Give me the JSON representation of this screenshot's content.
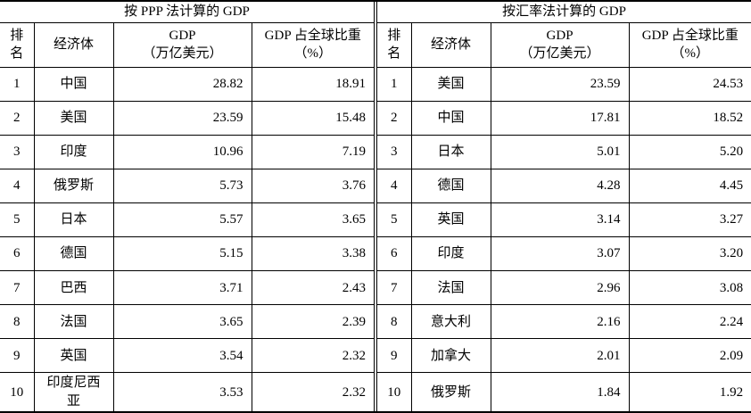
{
  "page": {
    "background_color": "#ffffff",
    "border_color": "#000000",
    "text_color": "#000000"
  },
  "tables": {
    "left": {
      "title": "按 PPP 法计算的 GDP",
      "headers": {
        "rank": "排\n名",
        "economy": "经济体",
        "gdp": "GDP\n（万亿美元）",
        "share": "GDP 占全球比重\n（%）"
      },
      "rows": [
        {
          "rank": "1",
          "economy": "中国",
          "gdp": "28.82",
          "share": "18.91"
        },
        {
          "rank": "2",
          "economy": "美国",
          "gdp": "23.59",
          "share": "15.48"
        },
        {
          "rank": "3",
          "economy": "印度",
          "gdp": "10.96",
          "share": "7.19"
        },
        {
          "rank": "4",
          "economy": "俄罗斯",
          "gdp": "5.73",
          "share": "3.76"
        },
        {
          "rank": "5",
          "economy": "日本",
          "gdp": "5.57",
          "share": "3.65"
        },
        {
          "rank": "6",
          "economy": "德国",
          "gdp": "5.15",
          "share": "3.38"
        },
        {
          "rank": "7",
          "economy": "巴西",
          "gdp": "3.71",
          "share": "2.43"
        },
        {
          "rank": "8",
          "economy": "法国",
          "gdp": "3.65",
          "share": "2.39"
        },
        {
          "rank": "9",
          "economy": "英国",
          "gdp": "3.54",
          "share": "2.32"
        },
        {
          "rank": "10",
          "economy": "印度尼西\n亚",
          "gdp": "3.53",
          "share": "2.32"
        }
      ]
    },
    "right": {
      "title": "按汇率法计算的 GDP",
      "headers": {
        "rank": "排\n名",
        "economy": "经济体",
        "gdp": "GDP\n（万亿美元）",
        "share": "GDP 占全球比重\n（%）"
      },
      "rows": [
        {
          "rank": "1",
          "economy": "美国",
          "gdp": "23.59",
          "share": "24.53"
        },
        {
          "rank": "2",
          "economy": "中国",
          "gdp": "17.81",
          "share": "18.52"
        },
        {
          "rank": "3",
          "economy": "日本",
          "gdp": "5.01",
          "share": "5.20"
        },
        {
          "rank": "4",
          "economy": "德国",
          "gdp": "4.28",
          "share": "4.45"
        },
        {
          "rank": "5",
          "economy": "英国",
          "gdp": "3.14",
          "share": "3.27"
        },
        {
          "rank": "6",
          "economy": "印度",
          "gdp": "3.07",
          "share": "3.20"
        },
        {
          "rank": "7",
          "economy": "法国",
          "gdp": "2.96",
          "share": "3.08"
        },
        {
          "rank": "8",
          "economy": "意大利",
          "gdp": "2.16",
          "share": "2.24"
        },
        {
          "rank": "9",
          "economy": "加拿大",
          "gdp": "2.01",
          "share": "2.09"
        },
        {
          "rank": "10",
          "economy": "俄罗斯",
          "gdp": "1.84",
          "share": "1.92"
        }
      ]
    }
  }
}
